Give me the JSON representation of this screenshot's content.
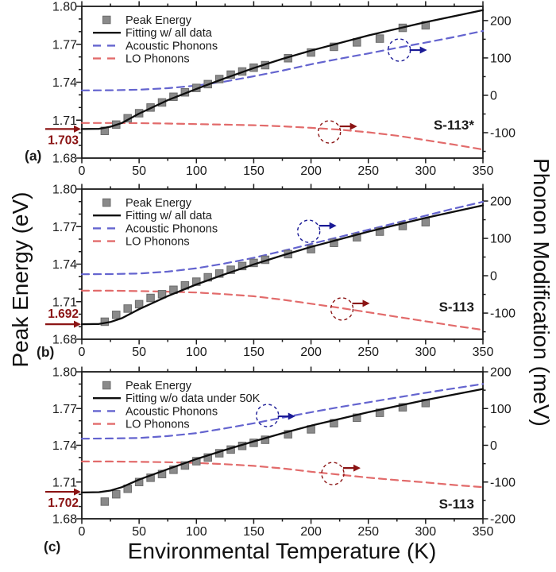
{
  "figure": {
    "x_axis_title": "Environmental Temperature (K)",
    "left_axis_title": "Peak Energy (eV)",
    "right_axis_title": "Phonon Modification (meV)",
    "background": "#ffffff"
  },
  "colors": {
    "axis": "#1a1a1a",
    "text": "#1a1a1a",
    "marker_fill": "#8a8a8a",
    "marker_edge": "#6b6b6b",
    "fit": "#0d0d0d",
    "acoustic": "#6464cf",
    "lo": "#e26b6b",
    "annotation": "#8b1414",
    "acoustic_indicator": "#1b1b96",
    "lo_indicator": "#8b1414"
  },
  "chart_data": [
    {
      "id": "a",
      "type": "scatter",
      "panel_label": "(a)",
      "sample_label": "S-113*",
      "x_axis": {
        "range": [
          0,
          350
        ],
        "major_ticks": [
          0,
          50,
          100,
          150,
          200,
          250,
          300,
          350
        ],
        "minor_step": 25
      },
      "left_axis": {
        "range": [
          1.68,
          1.8
        ],
        "major_ticks": [
          1.8,
          1.77,
          1.74,
          1.71,
          1.68
        ],
        "minor_step": 0.01
      },
      "right_axis": {
        "tick_labels": [
          200,
          100,
          0,
          -100
        ],
        "minor_step": 50,
        "top_value": 238,
        "bottom_value": -168
      },
      "legend": [
        {
          "label": "Peak Energy",
          "type": "marker"
        },
        {
          "label": "Fitting w/ all data",
          "type": "fit"
        },
        {
          "label": "Acoustic Phonons",
          "type": "acoustic"
        },
        {
          "label": "LO Phonons",
          "type": "lo"
        }
      ],
      "annotation": {
        "text": "1.703",
        "value": 1.703,
        "label_position": "below"
      },
      "series": {
        "peak_energy": {
          "T": [
            20,
            30,
            40,
            50,
            60,
            70,
            80,
            90,
            100,
            110,
            120,
            130,
            140,
            150,
            160,
            180,
            200,
            220,
            240,
            260,
            280,
            300
          ],
          "E": [
            1.7015,
            1.7065,
            1.7115,
            1.7155,
            1.72,
            1.724,
            1.7285,
            1.732,
            1.7355,
            1.7385,
            1.7425,
            1.746,
            1.7485,
            1.7515,
            1.7535,
            1.759,
            1.7635,
            1.768,
            1.7715,
            1.7745,
            1.783,
            1.785
          ]
        },
        "fit": {
          "T": [
            0,
            15,
            25,
            35,
            50,
            75,
            100,
            125,
            150,
            175,
            200,
            250,
            300,
            350
          ],
          "E": [
            1.703,
            1.7032,
            1.7048,
            1.7078,
            1.7152,
            1.7258,
            1.7347,
            1.7432,
            1.7512,
            1.7585,
            1.765,
            1.777,
            1.7875,
            1.797
          ]
        },
        "acoustic": {
          "T": [
            0,
            25,
            50,
            75,
            100,
            125,
            150,
            175,
            200,
            225,
            250,
            275,
            300,
            325,
            350
          ],
          "meV": [
            13,
            13.5,
            15,
            19,
            26,
            37,
            51,
            66,
            83,
            98,
            112,
            127,
            141,
            156,
            172
          ]
        },
        "lo": {
          "T": [
            0,
            25,
            50,
            75,
            100,
            125,
            150,
            175,
            200,
            225,
            250,
            275,
            300,
            325,
            350
          ],
          "meV": [
            -74,
            -74,
            -74.5,
            -75.5,
            -77,
            -78.5,
            -80,
            -83,
            -87,
            -92,
            -99,
            -108,
            -120,
            -132,
            -145
          ]
        }
      },
      "indicators": [
        {
          "series": "acoustic",
          "T": 277,
          "meV": 121,
          "arrow_dy": 0
        },
        {
          "series": "lo",
          "T": 216,
          "meV": -98,
          "arrow_dy": -7
        }
      ]
    },
    {
      "id": "b",
      "type": "scatter",
      "panel_label": "(b)",
      "sample_label": "S-113",
      "x_axis": {
        "range": [
          0,
          350
        ],
        "major_ticks": [
          0,
          50,
          100,
          150,
          200,
          250,
          300,
          350
        ],
        "minor_step": 25
      },
      "left_axis": {
        "range": [
          1.68,
          1.8
        ],
        "major_ticks": [
          1.8,
          1.77,
          1.74,
          1.71,
          1.68
        ],
        "minor_step": 0.01
      },
      "right_axis": {
        "tick_labels": [
          200,
          100,
          0,
          -100
        ],
        "minor_step": 50,
        "top_value": 232,
        "bottom_value": -170
      },
      "legend": [
        {
          "label": "Peak Energy",
          "type": "marker"
        },
        {
          "label": "Fitting w/ all data",
          "type": "fit"
        },
        {
          "label": "Acoustic Phonons",
          "type": "acoustic"
        },
        {
          "label": "LO Phonons",
          "type": "lo"
        }
      ],
      "annotation": {
        "text": "1.692",
        "value": 1.692,
        "label_position": "above"
      },
      "series": {
        "peak_energy": {
          "T": [
            20,
            30,
            40,
            50,
            60,
            70,
            80,
            90,
            100,
            110,
            120,
            130,
            140,
            150,
            160,
            180,
            200,
            220,
            240,
            260,
            280,
            300
          ],
          "E": [
            1.694,
            1.6995,
            1.7045,
            1.708,
            1.713,
            1.716,
            1.7195,
            1.723,
            1.726,
            1.7295,
            1.7325,
            1.7355,
            1.7385,
            1.741,
            1.7435,
            1.748,
            1.752,
            1.757,
            1.7615,
            1.766,
            1.7705,
            1.7735
          ]
        },
        "fit": {
          "T": [
            0,
            15,
            25,
            35,
            50,
            75,
            100,
            125,
            150,
            175,
            200,
            250,
            300,
            350
          ],
          "E": [
            1.692,
            1.6922,
            1.6938,
            1.6968,
            1.704,
            1.7145,
            1.7238,
            1.732,
            1.7398,
            1.747,
            1.7538,
            1.766,
            1.777,
            1.787
          ]
        },
        "acoustic": {
          "T": [
            0,
            25,
            50,
            75,
            100,
            125,
            150,
            175,
            200,
            225,
            250,
            275,
            300,
            325,
            350
          ],
          "meV": [
            4,
            4.5,
            6,
            11,
            20,
            33,
            48,
            66,
            85,
            104,
            123,
            142,
            161,
            180,
            198
          ]
        },
        "lo": {
          "T": [
            0,
            25,
            50,
            75,
            100,
            125,
            150,
            175,
            200,
            225,
            250,
            275,
            300,
            325,
            350
          ],
          "meV": [
            -40,
            -40,
            -41,
            -42.5,
            -45,
            -49.5,
            -55,
            -64,
            -75,
            -86,
            -98,
            -110,
            -122,
            -134,
            -145
          ]
        }
      },
      "indicators": [
        {
          "series": "acoustic",
          "T": 198,
          "meV": 119,
          "arrow_dy": -7
        },
        {
          "series": "lo",
          "T": 227,
          "meV": -89,
          "arrow_dy": -7
        }
      ]
    },
    {
      "id": "c",
      "type": "scatter",
      "panel_label": "(c)",
      "sample_label": "S-113",
      "x_axis": {
        "range": [
          0,
          350
        ],
        "major_ticks": [
          0,
          50,
          100,
          150,
          200,
          250,
          300,
          350
        ],
        "minor_step": 25
      },
      "left_axis": {
        "range": [
          1.68,
          1.8
        ],
        "major_ticks": [
          1.8,
          1.77,
          1.74,
          1.71,
          1.68
        ],
        "minor_step": 0.01
      },
      "right_axis": {
        "tick_labels": [
          200,
          100,
          0,
          -100,
          -200
        ],
        "minor_step": 50,
        "top_value": 200,
        "bottom_value": -200
      },
      "legend": [
        {
          "label": "Peak Energy",
          "type": "marker"
        },
        {
          "label": "Fitting w/o data under 50K",
          "type": "fit"
        },
        {
          "label": "Acoustic Phonons",
          "type": "acoustic"
        },
        {
          "label": "LO Phonons",
          "type": "lo"
        }
      ],
      "annotation": {
        "text": "1.702",
        "value": 1.702,
        "label_position": "below"
      },
      "series": {
        "peak_energy": {
          "T": [
            20,
            30,
            40,
            50,
            60,
            70,
            80,
            90,
            100,
            110,
            120,
            130,
            140,
            150,
            160,
            180,
            200,
            220,
            240,
            260,
            280,
            300
          ],
          "E": [
            1.694,
            1.7,
            1.7045,
            1.71,
            1.7135,
            1.7165,
            1.72,
            1.7235,
            1.727,
            1.73,
            1.7335,
            1.7365,
            1.7395,
            1.742,
            1.7445,
            1.749,
            1.753,
            1.758,
            1.7625,
            1.7665,
            1.771,
            1.7745
          ]
        },
        "fit": {
          "T": [
            0,
            15,
            25,
            35,
            50,
            75,
            100,
            125,
            150,
            175,
            200,
            250,
            300,
            350
          ],
          "E": [
            1.7015,
            1.7017,
            1.703,
            1.7058,
            1.712,
            1.7205,
            1.7288,
            1.7362,
            1.7432,
            1.7498,
            1.756,
            1.767,
            1.777,
            1.786
          ]
        },
        "acoustic": {
          "T": [
            0,
            25,
            50,
            75,
            100,
            125,
            150,
            175,
            200,
            225,
            250,
            275,
            300,
            325,
            350
          ],
          "meV": [
            18,
            18.5,
            20,
            25,
            33,
            46,
            60,
            75,
            90,
            104,
            117,
            130,
            143,
            155,
            167
          ]
        },
        "lo": {
          "T": [
            0,
            25,
            50,
            75,
            100,
            125,
            150,
            175,
            200,
            225,
            250,
            275,
            300,
            325,
            350
          ],
          "meV": [
            -44,
            -44,
            -45,
            -46,
            -48,
            -51.5,
            -56,
            -63,
            -72,
            -80,
            -88,
            -95,
            -101,
            -108,
            -114
          ]
        }
      },
      "indicators": [
        {
          "series": "acoustic",
          "T": 162,
          "meV": 81,
          "arrow_dy": 1
        },
        {
          "series": "lo",
          "T": 219,
          "meV": -77,
          "arrow_dy": -7
        }
      ]
    }
  ]
}
